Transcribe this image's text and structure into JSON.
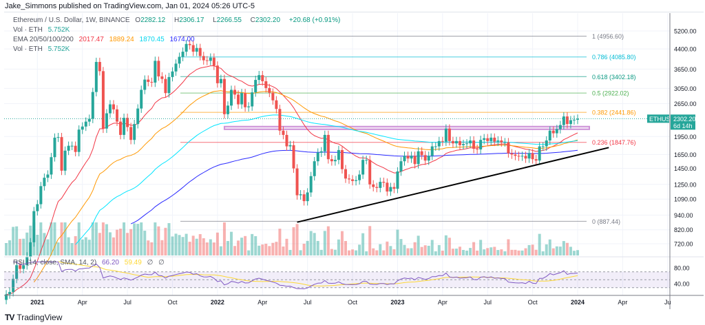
{
  "header": {
    "published": "Jake_Simmons published on TradingView.com, Jan 01, 2024 05:26 UTC-5"
  },
  "legend": {
    "symbol": "Ethereum / U.S. Dollar, 1W, BINANCE",
    "open_label": "O",
    "open": "2282.12",
    "high_label": "H",
    "high": "2306.17",
    "low_label": "L",
    "low": "2266.55",
    "close_label": "C",
    "close": "2302.20",
    "change": "+20.68 (+0.91%)",
    "vol_label": "Vol · ETH",
    "vol_value": "5.752K",
    "ema_label": "EMA 20/50/100/200",
    "ema_values": [
      "2017.47",
      "1889.24",
      "1870.45",
      "1674.00"
    ],
    "vol2_label": "Vol · ETH",
    "vol2_value": "5.752K",
    "rsi_label": "RSI (14, close, SMA, 14, 2)",
    "rsi_value": "66.20",
    "rsi_sma": "59.49",
    "rsi_na1": "∅",
    "rsi_na2": "∅"
  },
  "colors": {
    "up": "#26a69a",
    "down": "#ef5350",
    "ema20": "#f23645",
    "ema50": "#ff9800",
    "ema100": "#00e5ff",
    "ema200": "#2929ff",
    "rsi": "#7e57c2",
    "rsi_sma": "#fdd835",
    "accent": "#26a69a"
  },
  "chart_data": {
    "type": "candlestick",
    "scale": "log",
    "symbol": "ETHUSD",
    "start": "2020-11-02",
    "interval": "1W",
    "closes": [
      450,
      460,
      520,
      590,
      570,
      590,
      640,
      730,
      975,
      1040,
      1230,
      1330,
      1370,
      1610,
      1930,
      1940,
      1420,
      1710,
      1790,
      1790,
      1690,
      2080,
      2140,
      2240,
      2300,
      2950,
      3900,
      3580,
      2100,
      2420,
      2630,
      2510,
      2240,
      1980,
      2320,
      2130,
      1890,
      2190,
      2530,
      3010,
      3310,
      3240,
      3220,
      3940,
      3410,
      3330,
      2920,
      3390,
      3570,
      3840,
      4090,
      4290,
      4610,
      4560,
      4290,
      4440,
      4120,
      3960,
      3940,
      4060,
      3770,
      3200,
      3330,
      2400,
      2600,
      3010,
      2880,
      2630,
      2920,
      2560,
      2580,
      2940,
      3300,
      3450,
      3260,
      3060,
      2930,
      2730,
      2520,
      2060,
      1980,
      1780,
      1800,
      1450,
      1130,
      1140,
      1070,
      1160,
      1350,
      1550,
      1680,
      1700,
      1980,
      1580,
      1550,
      1570,
      1720,
      1440,
      1320,
      1310,
      1290,
      1300,
      1370,
      1570,
      1570,
      1250,
      1220,
      1210,
      1280,
      1270,
      1170,
      1220,
      1200,
      1410,
      1550,
      1630,
      1590,
      1630,
      1510,
      1700,
      1640,
      1560,
      1630,
      1780,
      1780,
      1870,
      1860,
      2100,
      1870,
      1830,
      1870,
      1800,
      1820,
      1830,
      1880,
      1740,
      1730,
      1890,
      1920,
      1870,
      1930,
      1860,
      1880,
      1850,
      1850,
      1670,
      1650,
      1630,
      1620,
      1630,
      1590,
      1670,
      1580,
      1560,
      1780,
      1780,
      1880,
      2060,
      2010,
      2090,
      2170,
      2350,
      2190,
      2270,
      2280,
      2302.2
    ],
    "y_ticks": [
      5200,
      4400,
      3650,
      3050,
      2650,
      1950,
      1650,
      1450,
      1250,
      1090,
      940,
      820,
      720
    ],
    "y_tick_labels": [
      "5200.00",
      "4400.00",
      "3650.00",
      "3050.00",
      "2650.00",
      "1950.00",
      "1650.00",
      "1450.00",
      "1250.00",
      "1090.00",
      "940.00",
      "820.00",
      "720.00"
    ],
    "x_ticks": [
      {
        "label": "2021",
        "date": "2021-01-04",
        "bold": true
      },
      {
        "label": "Apr",
        "date": "2021-04-05"
      },
      {
        "label": "Jul",
        "date": "2021-07-05"
      },
      {
        "label": "Oct",
        "date": "2021-10-04"
      },
      {
        "label": "2022",
        "date": "2022-01-03",
        "bold": true
      },
      {
        "label": "Apr",
        "date": "2022-04-04"
      },
      {
        "label": "Jul",
        "date": "2022-07-04"
      },
      {
        "label": "Oct",
        "date": "2022-10-03"
      },
      {
        "label": "2023",
        "date": "2023-01-02",
        "bold": true
      },
      {
        "label": "Apr",
        "date": "2023-04-03"
      },
      {
        "label": "Jul",
        "date": "2023-07-03"
      },
      {
        "label": "Oct",
        "date": "2023-10-02"
      },
      {
        "label": "2024",
        "date": "2024-01-01",
        "bold": true
      },
      {
        "label": "Apr",
        "date": "2024-04-01"
      },
      {
        "label": "Ju",
        "date": "2024-07-01"
      }
    ],
    "fib_levels": [
      {
        "label": "1 (4956.60)",
        "price": 4956.6,
        "color": "#787b86"
      },
      {
        "label": "0.786 (4085.80)",
        "price": 4085.8,
        "color": "#00bcd4"
      },
      {
        "label": "0.618 (3402.18)",
        "price": 3402.18,
        "color": "#089981"
      },
      {
        "label": "0.5 (2922.02)",
        "price": 2922.02,
        "color": "#4caf50"
      },
      {
        "label": "0.382 (2441.86)",
        "price": 2441.86,
        "color": "#ff9800"
      },
      {
        "label": "0.236 (1847.76)",
        "price": 1847.76,
        "color": "#f23645"
      },
      {
        "label": "0 (887.44)",
        "price": 887.44,
        "color": "#787b86"
      }
    ],
    "support_zone": {
      "from": "2022-01-17",
      "price_low": 2085,
      "price_high": 2140,
      "color": "#ce93d8"
    },
    "trendline": {
      "from": {
        "date": "2022-06-13",
        "price": 880
      },
      "to": {
        "date": "2024-03-04",
        "price": 1760
      },
      "color": "#000000"
    },
    "current_price": {
      "symbol_label": "ETHUSD",
      "price": "2302.20",
      "countdown": "6d 14h"
    },
    "rsi_ticks": [
      {
        "label": "80.00",
        "value": 80
      },
      {
        "label": "40.00",
        "value": 40
      }
    ],
    "rsi_bands": [
      70,
      50,
      30
    ]
  },
  "footer": {
    "brand": "TradingView"
  }
}
